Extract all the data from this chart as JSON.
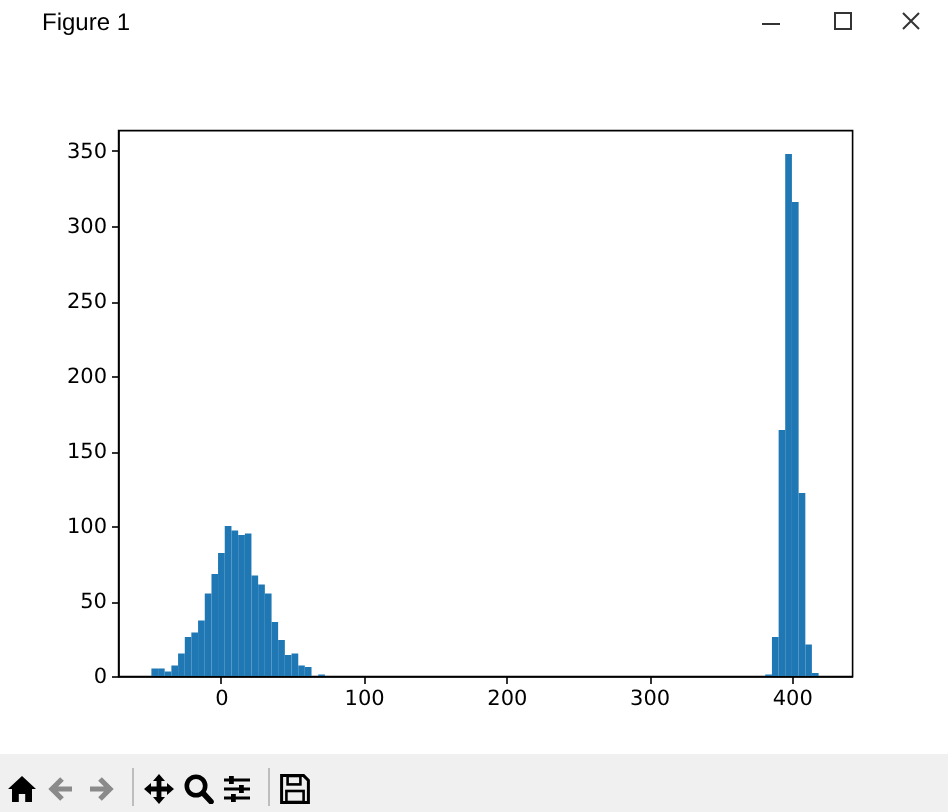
{
  "chart_data": {
    "type": "histogram",
    "annotations": [
      "Figure 1"
    ],
    "bins": [
      -48.7,
      -44,
      -39.4,
      -34.7,
      -30,
      -25.3,
      -20.7,
      -16,
      -11.3,
      -6.6,
      -2,
      2.7,
      7.4,
      12.1,
      16.8,
      21.4,
      26.1,
      30.8,
      35.5,
      40.1,
      44.8,
      49.5,
      54.2,
      58.8,
      63.5,
      68.2,
      72.9,
      381.4,
      386.1,
      390.8,
      395.4,
      400.1,
      404.8,
      409.5,
      414.1,
      418.8
    ],
    "values": [
      5,
      5,
      3,
      7,
      15,
      26,
      29,
      37,
      55,
      68,
      82,
      100,
      97,
      94,
      95,
      67,
      61,
      55,
      36,
      24,
      14,
      15,
      7,
      6,
      0,
      1,
      0,
      1,
      26,
      164,
      348,
      316,
      122,
      21,
      2
    ],
    "color": "#1f77b4",
    "xlim": [
      -72.1,
      442.2
    ],
    "xticks": [
      0,
      100,
      200,
      300,
      400
    ],
    "ylim": [
      0,
      364
    ],
    "yticks": [
      0,
      50,
      100,
      150,
      200,
      250,
      300,
      350
    ],
    "grid": false
  }
}
